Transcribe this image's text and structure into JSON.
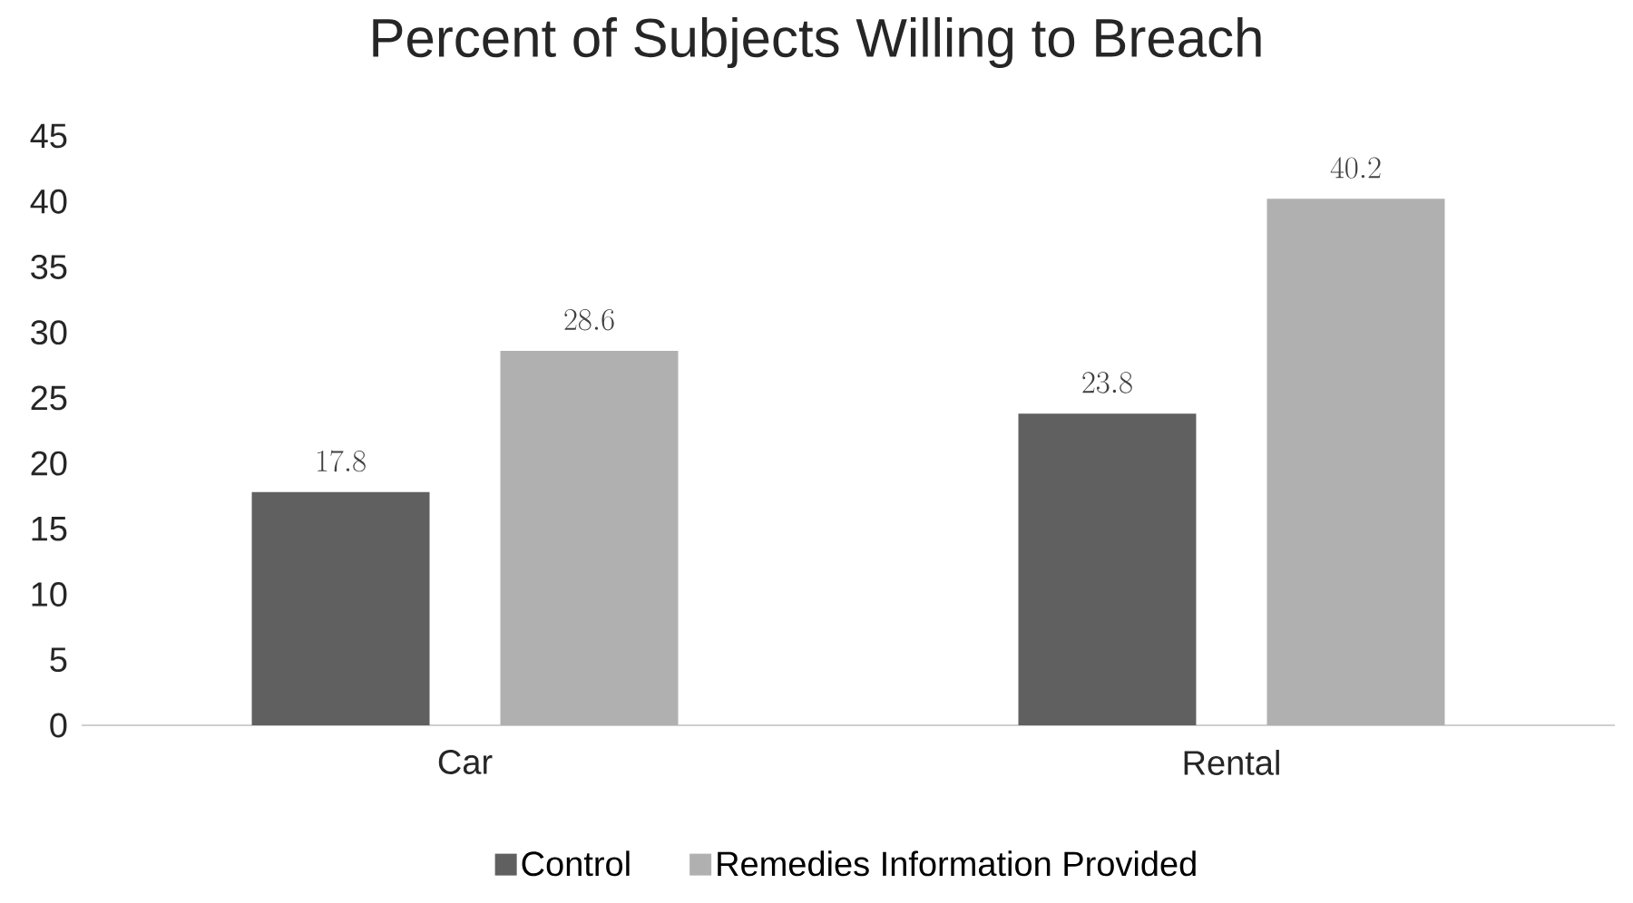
{
  "chart_data": {
    "type": "bar",
    "title": "Percent of Subjects Willing to Breach",
    "categories": [
      "Car",
      "Rental"
    ],
    "series": [
      {
        "name": "Control",
        "color": "#606060",
        "values": [
          17.8,
          23.8
        ]
      },
      {
        "name": "Remedies Information Provided",
        "color": "#b0b0b0",
        "values": [
          28.6,
          40.2
        ]
      }
    ],
    "ylim": [
      0,
      45
    ],
    "yticks": [
      0,
      5,
      10,
      15,
      20,
      25,
      30,
      35,
      40,
      45
    ],
    "data_labels": true,
    "legend": "bottom",
    "grid": false
  }
}
